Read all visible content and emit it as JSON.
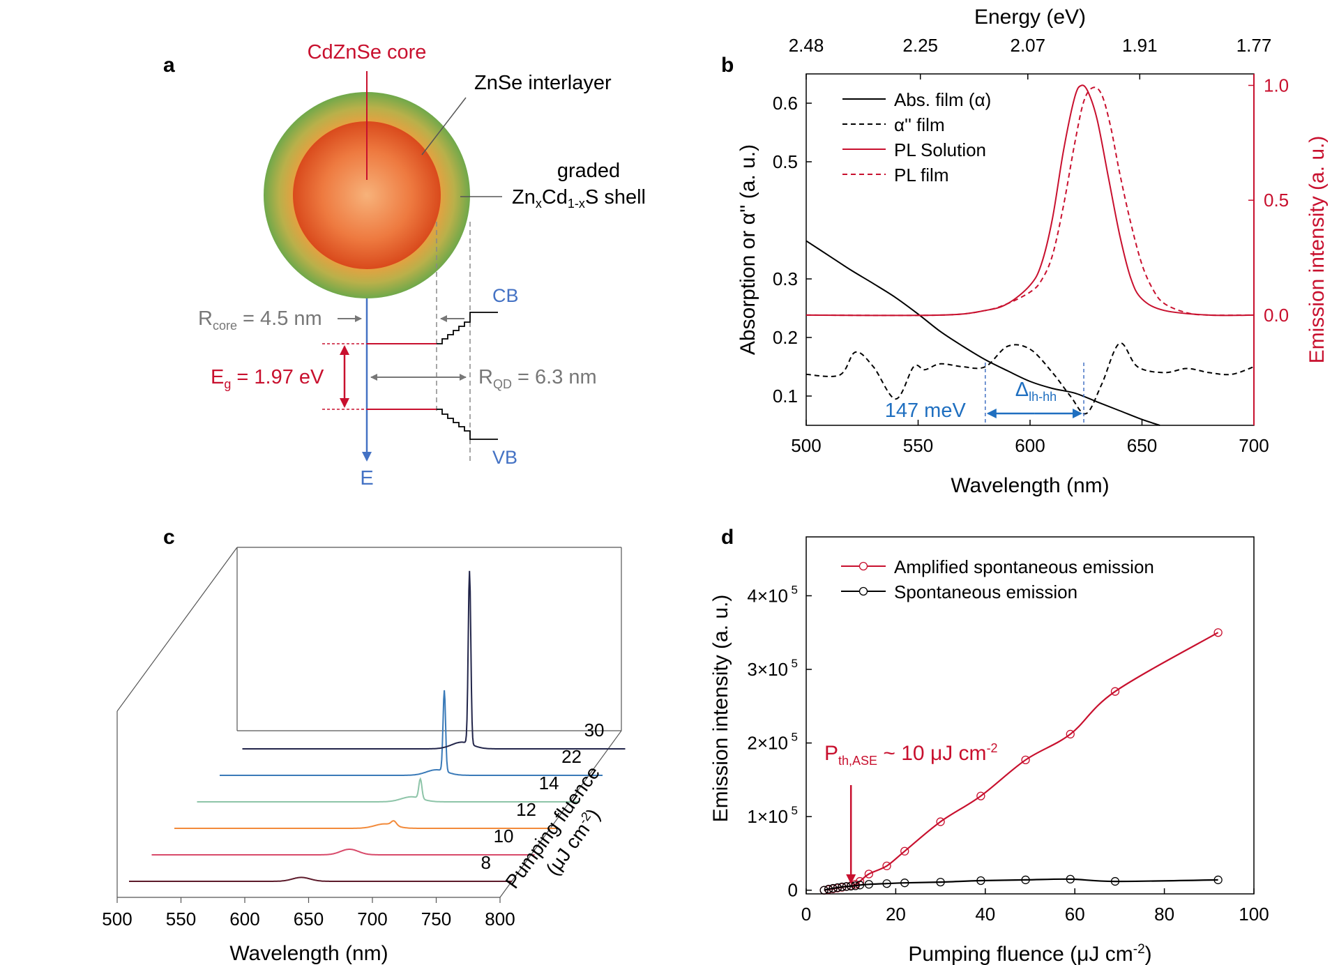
{
  "panels": {
    "a": "a",
    "b": "b",
    "c": "c",
    "d": "d"
  },
  "colors": {
    "red": "#c8102e",
    "blue": "#4472c4",
    "gray": "#777777",
    "black": "#000000",
    "shell": "#7aa84a",
    "core": "#d94a1c"
  },
  "diagram": {
    "core_label": "CdZnSe core",
    "interlayer_label": "ZnSe interlayer",
    "shell_label_1": "graded",
    "shell_label_2": "Zn",
    "shell_sub_x": "x",
    "shell_cd": "Cd",
    "shell_sub_1x": "1-x",
    "shell_tail": "S shell",
    "cb_label": "CB",
    "vb_label": "VB",
    "e_label": "E",
    "rcore_R": "R",
    "rcore_sub": "core",
    "rcore_val": " = 4.5 nm",
    "rqd_R": "R",
    "rqd_sub": "QD",
    "rqd_val": " = 6.3 nm",
    "eg_E": "E",
    "eg_sub": "g",
    "eg_val": " = 1.97 eV"
  },
  "chart_data": [
    {
      "panel": "b",
      "type": "line",
      "xlabel": "Wavelength (nm)",
      "x2label": "Energy (eV)",
      "ylabel": "Absorption or α'' (a. u.)",
      "y2label": "Emission intensity (a. u.)",
      "xlim": [
        500,
        700
      ],
      "ylim": [
        0.05,
        0.65
      ],
      "y2lim": [
        -0.48,
        1.05
      ],
      "xticks": [
        500,
        550,
        600,
        650,
        700
      ],
      "yticks": [
        0.1,
        0.2,
        0.3,
        0.5,
        0.6
      ],
      "y2ticks": [
        0.0,
        0.5,
        1.0
      ],
      "top_ticks": [
        "2.48",
        "2.25",
        "2.07",
        "1.91",
        "1.77"
      ],
      "top_tick_wavelengths": [
        500,
        551,
        599,
        649,
        700
      ],
      "legend": [
        "Abs. film (α)",
        "α'' film",
        "PL Solution",
        "PL film"
      ],
      "annotations": {
        "left_value": "147 meV",
        "delta": "Δ",
        "delta_sub": "lh-hh",
        "delta_range_nm": [
          580,
          624
        ]
      },
      "series": [
        {
          "name": "Abs. film (α)",
          "axis": "left",
          "style": "solid",
          "color": "#000000",
          "x": [
            500,
            510,
            520,
            530,
            540,
            550,
            560,
            570,
            580,
            590,
            600,
            610,
            620,
            630,
            640,
            650,
            658
          ],
          "y": [
            0.365,
            0.34,
            0.315,
            0.292,
            0.268,
            0.24,
            0.21,
            0.185,
            0.162,
            0.143,
            0.125,
            0.113,
            0.105,
            0.09,
            0.075,
            0.06,
            0.05
          ]
        },
        {
          "name": "α'' film",
          "axis": "left",
          "style": "dashed",
          "color": "#000000",
          "x": [
            500,
            515,
            522,
            530,
            540,
            548,
            553,
            560,
            570,
            580,
            590,
            600,
            610,
            618,
            625,
            632,
            640,
            648,
            660,
            670,
            680,
            690,
            700
          ],
          "y": [
            0.137,
            0.136,
            0.175,
            0.15,
            0.095,
            0.15,
            0.145,
            0.155,
            0.15,
            0.15,
            0.185,
            0.18,
            0.14,
            0.1,
            0.07,
            0.12,
            0.19,
            0.15,
            0.14,
            0.147,
            0.14,
            0.137,
            0.15
          ]
        },
        {
          "name": "PL Solution",
          "axis": "right",
          "style": "solid",
          "color": "#c8102e",
          "x": [
            500,
            560,
            580,
            590,
            600,
            605,
            610,
            615,
            620,
            623,
            626,
            630,
            635,
            640,
            645,
            650,
            660,
            680,
            700
          ],
          "y": [
            0,
            0,
            0.02,
            0.05,
            0.13,
            0.22,
            0.42,
            0.72,
            0.95,
            1.0,
            0.97,
            0.85,
            0.6,
            0.35,
            0.16,
            0.07,
            0.02,
            0,
            0
          ]
        },
        {
          "name": "PL film",
          "axis": "right",
          "style": "dashed",
          "color": "#c8102e",
          "x": [
            500,
            560,
            580,
            590,
            600,
            605,
            610,
            615,
            620,
            624,
            628,
            632,
            636,
            640,
            645,
            650,
            655,
            660,
            670,
            680,
            700
          ],
          "y": [
            0,
            0,
            0.02,
            0.05,
            0.1,
            0.15,
            0.26,
            0.48,
            0.75,
            0.93,
            0.99,
            0.96,
            0.82,
            0.62,
            0.4,
            0.22,
            0.11,
            0.05,
            0.01,
            0,
            0
          ]
        }
      ]
    },
    {
      "panel": "c",
      "type": "line",
      "xlabel": "Wavelength (nm)",
      "zlabel_1": "Pumping fluence",
      "zlabel_2": "(μJ cm",
      "zlabel_sup": "-2",
      "zlabel_3": ")",
      "xlim": [
        500,
        800
      ],
      "xticks": [
        500,
        550,
        600,
        650,
        700,
        750,
        800
      ],
      "series": [
        {
          "name": "8",
          "color": "#5c1a2a",
          "center": 635,
          "amplitude": 0.07,
          "width": 7,
          "narrow_peak": null
        },
        {
          "name": "10",
          "color": "#d84a6a",
          "center": 655,
          "amplitude": 0.1,
          "width": 7,
          "narrow_peak": null
        },
        {
          "name": "12",
          "color": "#f28a3a",
          "center": 665,
          "amplitude": 0.08,
          "width": 8,
          "narrow_peak": {
            "center": 672,
            "amplitude": 0.08,
            "width": 2
          }
        },
        {
          "name": "14",
          "color": "#8dc4a8",
          "center": 668,
          "amplitude": 0.09,
          "width": 8,
          "narrow_peak": {
            "center": 675,
            "amplitude": 0.35,
            "width": 1.2
          }
        },
        {
          "name": "22",
          "color": "#3a7ab8",
          "center": 670,
          "amplitude": 0.1,
          "width": 8,
          "narrow_peak": {
            "center": 676,
            "amplitude": 1.45,
            "width": 1.0
          }
        },
        {
          "name": "30",
          "color": "#22254a",
          "center": 672,
          "amplitude": 0.12,
          "width": 8,
          "narrow_peak": {
            "center": 678,
            "amplitude": 3.1,
            "width": 1.0
          }
        }
      ]
    },
    {
      "panel": "d",
      "type": "line",
      "xlabel": "Pumping fluence (μJ cm",
      "xlabel_sup": "-2",
      "xlabel_tail": ")",
      "ylabel": "Emission intensity (a. u.)",
      "xlim": [
        0,
        100
      ],
      "ylim": [
        -5000,
        480000
      ],
      "xticks": [
        0,
        20,
        40,
        60,
        80,
        100
      ],
      "yticks": [
        "0",
        "1×10",
        "2×10",
        "3×10",
        "4×10"
      ],
      "ytick_sup": "5",
      "annotation_P": "P",
      "annotation_sub": "th,ASE",
      "annotation_val": " ~ 10 μJ cm",
      "annotation_sup": "-2",
      "annotation_x": 10,
      "legend": [
        "Amplified spontaneous emission",
        "Spontaneous emission"
      ],
      "series": [
        {
          "name": "Amplified spontaneous emission",
          "color": "#c8102e",
          "x": [
            4,
            5,
            6,
            7,
            8,
            9,
            10,
            11,
            12,
            14,
            18,
            22,
            30,
            39,
            49,
            59,
            69,
            92
          ],
          "y": [
            0,
            1000,
            2000,
            3000,
            4000,
            5000,
            6000,
            8000,
            12000,
            22000,
            33000,
            53000,
            93000,
            128000,
            177000,
            212000,
            270000,
            350000
          ]
        },
        {
          "name": "Spontaneous emission",
          "color": "#000000",
          "x": [
            4,
            5,
            6,
            7,
            8,
            9,
            10,
            11,
            12,
            14,
            18,
            22,
            30,
            39,
            49,
            59,
            69,
            92
          ],
          "y": [
            0,
            1500,
            2500,
            3500,
            4500,
            5000,
            5500,
            6000,
            7000,
            8000,
            9000,
            10000,
            11000,
            13000,
            14000,
            15000,
            12000,
            14000
          ]
        }
      ]
    }
  ]
}
